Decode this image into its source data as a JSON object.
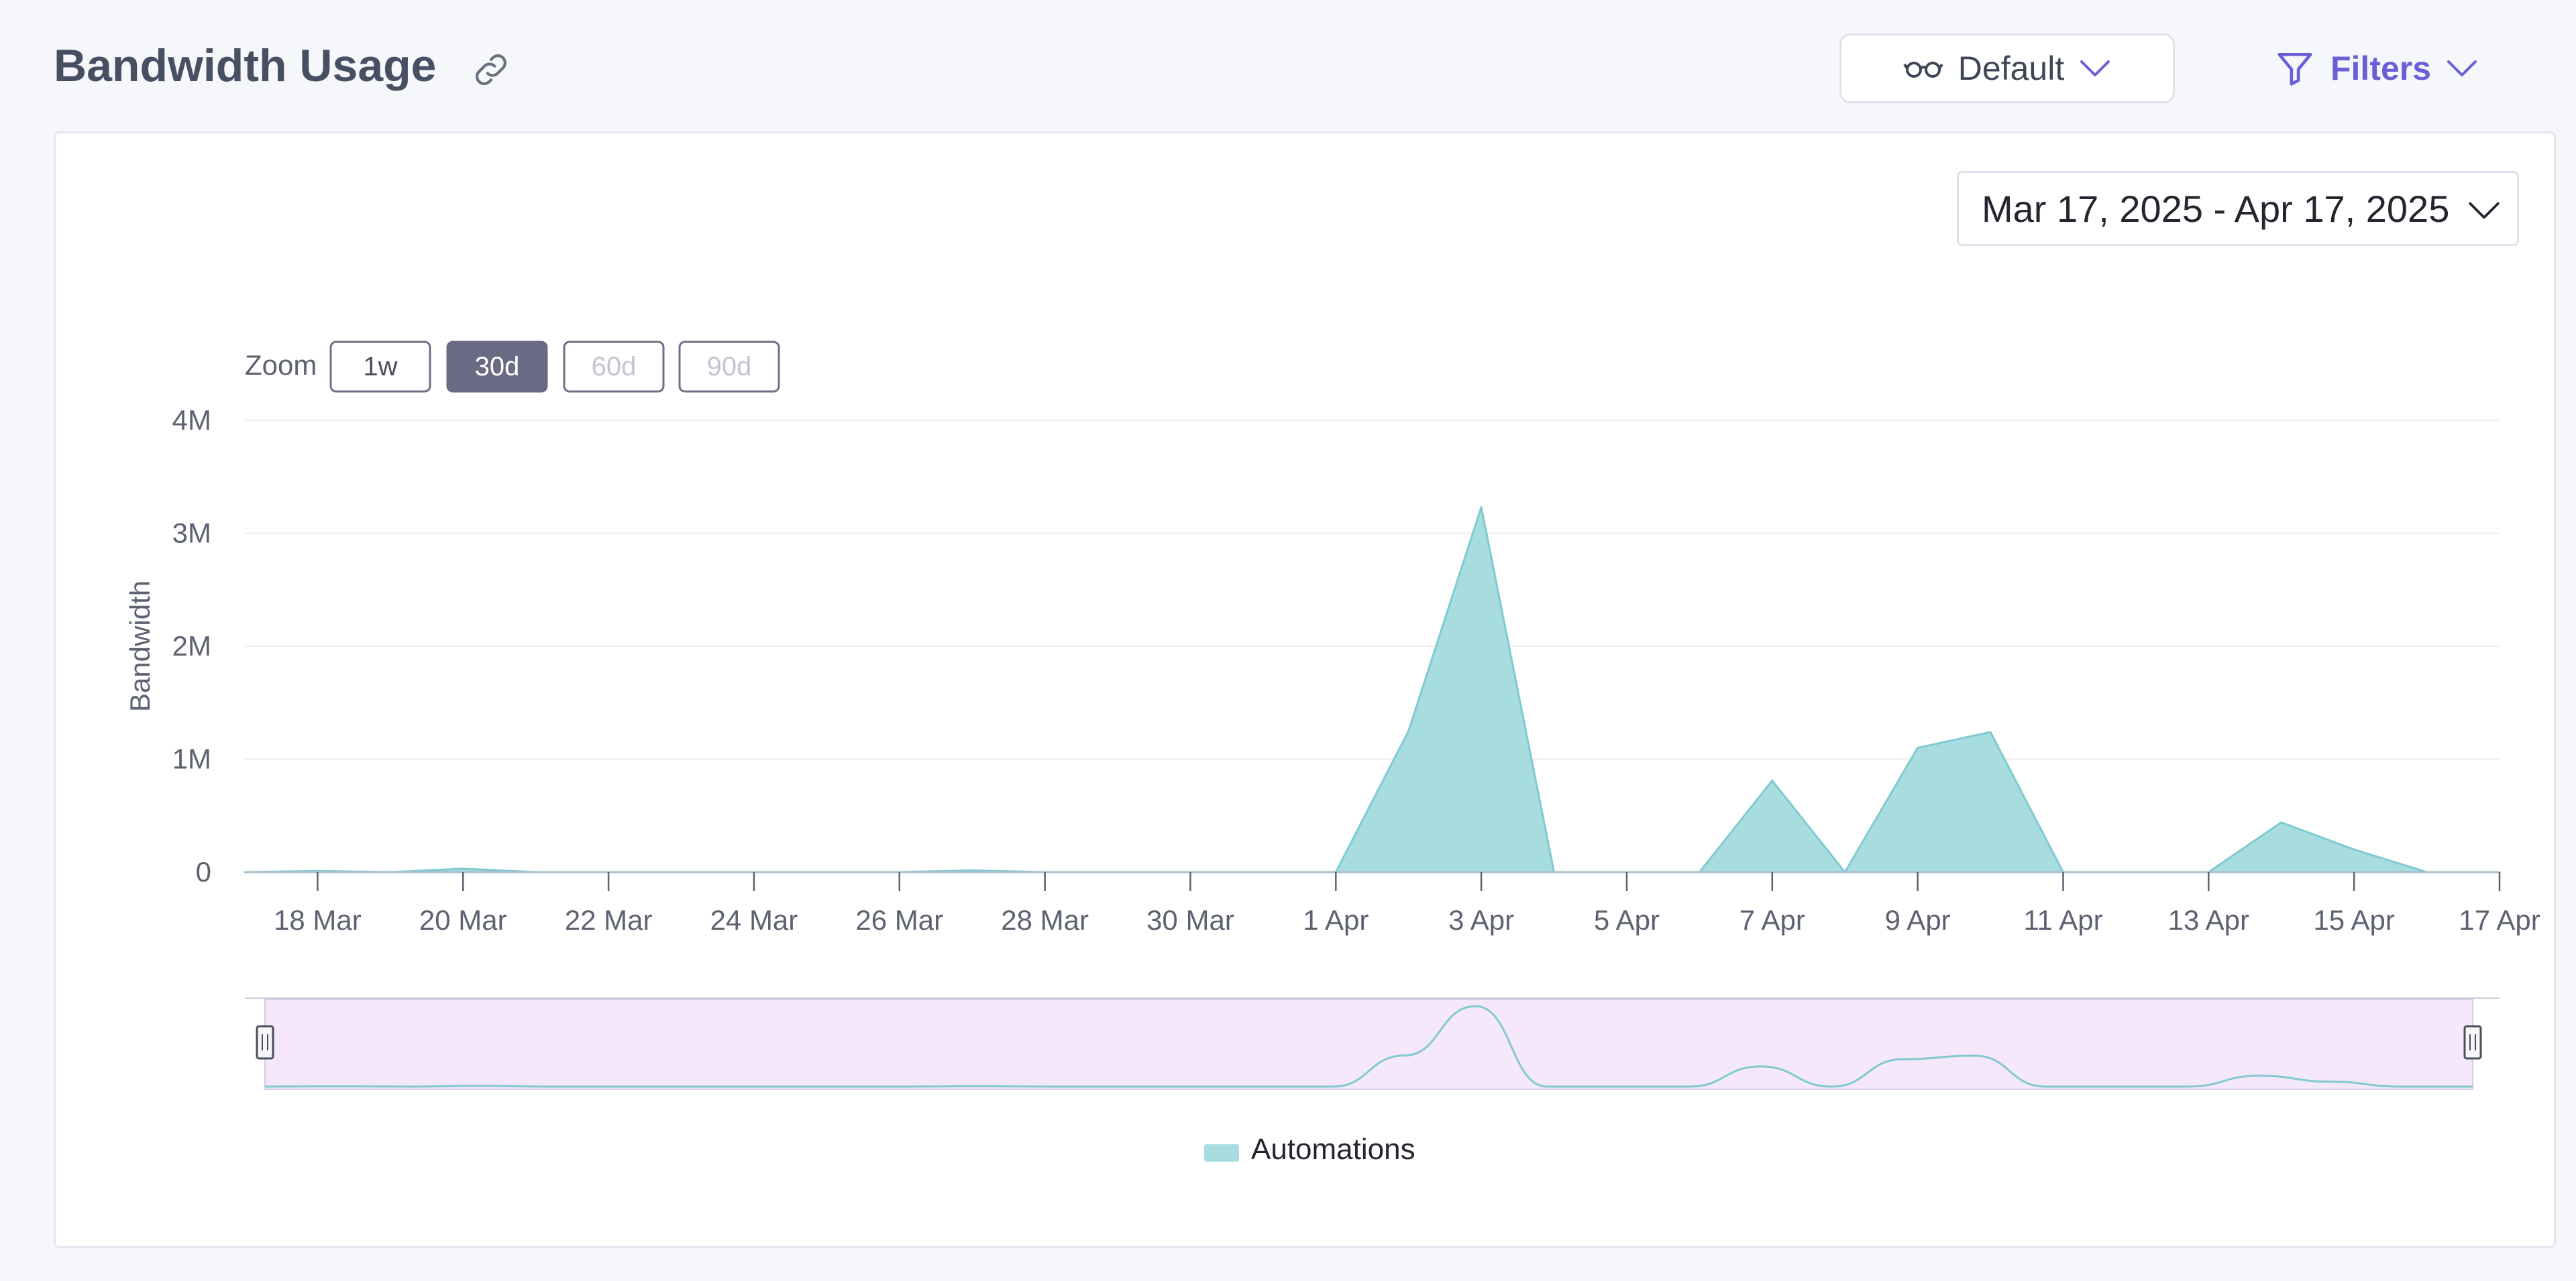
{
  "header": {
    "title": "Bandwidth Usage",
    "view_select": {
      "label": "Default"
    },
    "filters": {
      "label": "Filters"
    }
  },
  "card": {
    "date_range": "Mar 17, 2025 - Apr 17, 2025"
  },
  "zoom": {
    "label": "Zoom",
    "buttons": [
      {
        "label": "1w",
        "state": "enabled"
      },
      {
        "label": "30d",
        "state": "selected"
      },
      {
        "label": "60d",
        "state": "disabled"
      },
      {
        "label": "90d",
        "state": "disabled"
      }
    ]
  },
  "colors": {
    "area_fill": "#a8dde0",
    "area_stroke": "#7fcad0",
    "navigator_fill": "#f5e8fb",
    "navigator_line": "#82c9d0",
    "accent": "#6b5fd6",
    "zoom_selected_bg": "#6b6a85"
  },
  "icons": {
    "link": "link-icon",
    "view": "glasses-icon",
    "filter": "funnel-icon",
    "chevron": "chevron-down-icon"
  },
  "chart_data": {
    "type": "area",
    "title": "",
    "xlabel": "",
    "ylabel": "Bandwidth",
    "x": [
      "2025-03-17",
      "2025-03-18",
      "2025-03-19",
      "2025-03-20",
      "2025-03-21",
      "2025-03-22",
      "2025-03-23",
      "2025-03-24",
      "2025-03-25",
      "2025-03-26",
      "2025-03-27",
      "2025-03-28",
      "2025-03-29",
      "2025-03-30",
      "2025-03-31",
      "2025-04-01",
      "2025-04-02",
      "2025-04-03",
      "2025-04-04",
      "2025-04-05",
      "2025-04-06",
      "2025-04-07",
      "2025-04-08",
      "2025-04-09",
      "2025-04-10",
      "2025-04-11",
      "2025-04-12",
      "2025-04-13",
      "2025-04-14",
      "2025-04-15",
      "2025-04-16",
      "2025-04-17"
    ],
    "series": [
      {
        "name": "Automations",
        "values": [
          0,
          10000,
          0,
          30000,
          0,
          0,
          0,
          0,
          0,
          0,
          15000,
          0,
          0,
          0,
          0,
          0,
          1250000,
          3230000,
          0,
          0,
          0,
          810000,
          0,
          1100000,
          1240000,
          0,
          0,
          0,
          440000,
          200000,
          0,
          0
        ]
      }
    ],
    "x_tick_labels": [
      "18 Mar",
      "20 Mar",
      "22 Mar",
      "24 Mar",
      "26 Mar",
      "28 Mar",
      "30 Mar",
      "1 Apr",
      "3 Apr",
      "5 Apr",
      "7 Apr",
      "9 Apr",
      "11 Apr",
      "13 Apr",
      "15 Apr",
      "17 Apr"
    ],
    "x_tick_index": [
      1,
      3,
      5,
      7,
      9,
      11,
      13,
      15,
      17,
      19,
      21,
      23,
      25,
      27,
      29,
      31
    ],
    "y_ticks": [
      0,
      1000000,
      2000000,
      3000000,
      4000000
    ],
    "y_tick_labels": [
      "0",
      "1M",
      "2M",
      "3M",
      "4M"
    ],
    "ylim": [
      0,
      4000000
    ],
    "grid": true,
    "legend": {
      "placement": "bottom-center",
      "entries": [
        "Automations"
      ]
    },
    "navigator": true
  }
}
